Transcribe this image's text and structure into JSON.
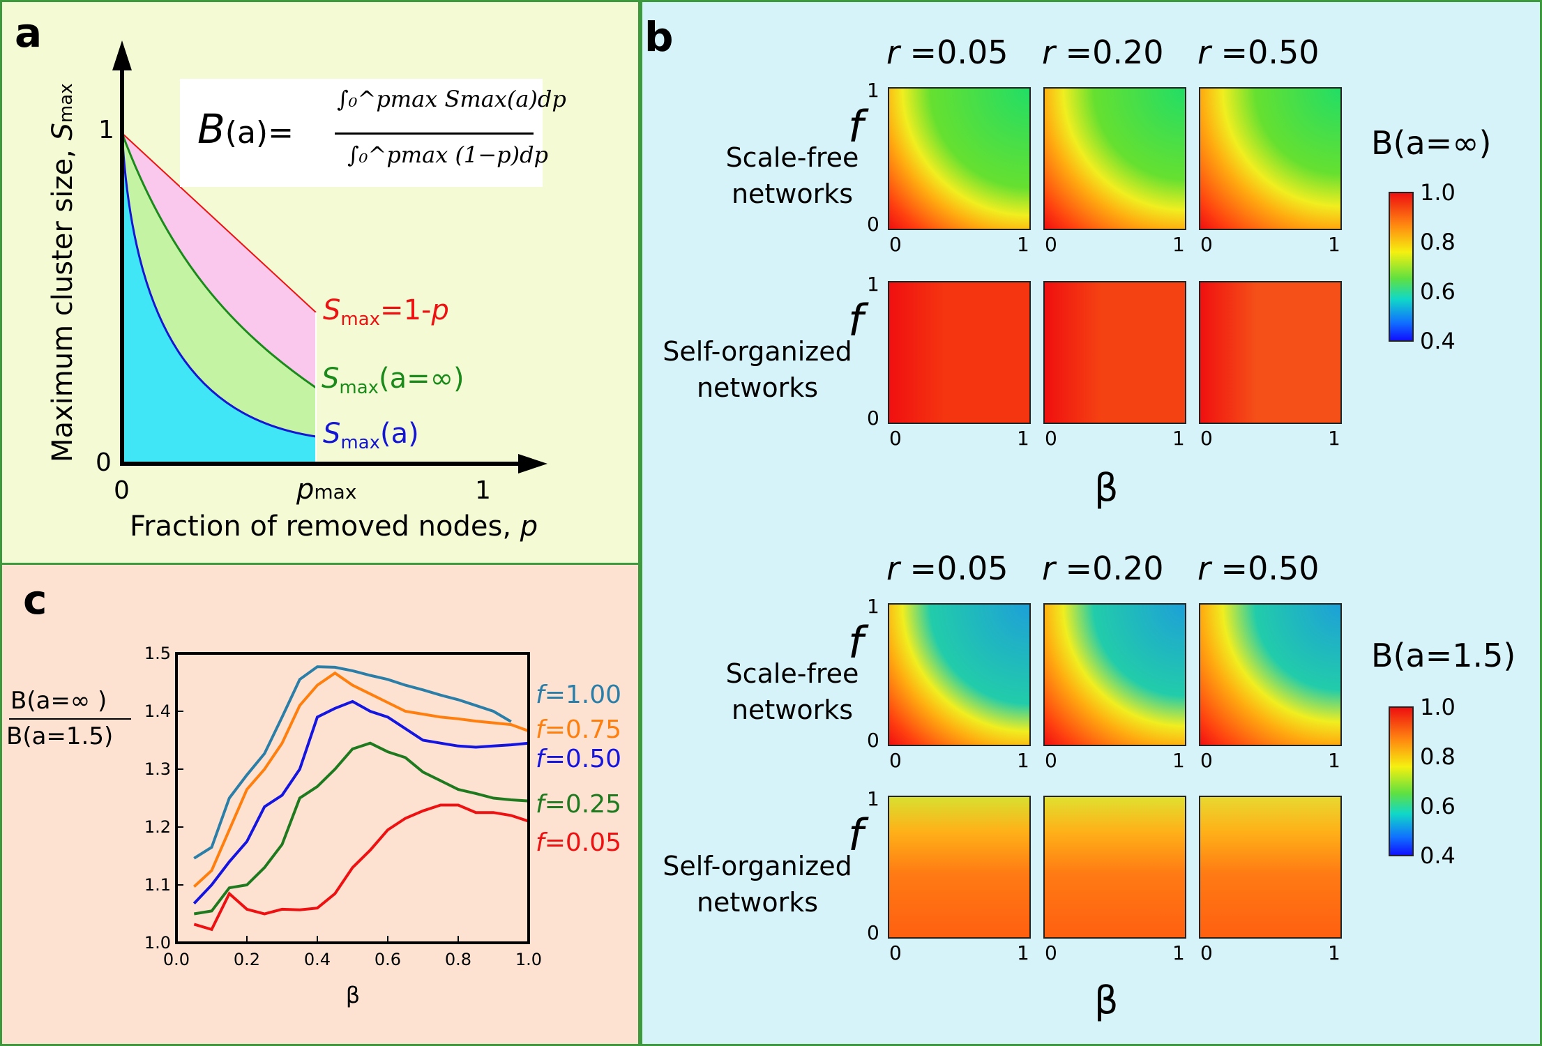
{
  "panel_a": {
    "label": "a",
    "ylabel_main": "Maximum cluster size, ",
    "ylabel_sym": "S",
    "ylabel_sub": "max",
    "xlabel_main": "Fraction of removed nodes, ",
    "xlabel_sym": "p",
    "y_tick_1": "1",
    "y_tick_0": "0",
    "x_tick_0": "0",
    "x_tick_1": "1",
    "pmax_sym": "p",
    "pmax_sub": "max",
    "formula_lhs_sym": "B",
    "formula_lhs_arg": "(a)=",
    "formula_num": "∫₀^pmax Smax(a)dp",
    "formula_den": "∫₀^pmax (1−p)dp",
    "curve_labels": [
      {
        "sym": "S",
        "sub": "max",
        "text": "=1-",
        "tail": "p",
        "color": "#ee1111"
      },
      {
        "sym": "S",
        "sub": "max",
        "text": "(a=∞)",
        "tail": "",
        "color": "#1a8a1a"
      },
      {
        "sym": "S",
        "sub": "max",
        "text": "(a)",
        "tail": "",
        "color": "#1515d4"
      }
    ]
  },
  "panel_b": {
    "label": "b",
    "r_titles": [
      "r =0.05",
      "r =0.20",
      "r =0.50"
    ],
    "row_labels": {
      "scale_free": [
        "Scale-free",
        "networks"
      ],
      "self_org": [
        "Self-organized",
        "networks"
      ]
    },
    "f_axis": "f",
    "beta_axis": "β",
    "tick_0": "0",
    "tick_1": "1",
    "colorbar_top_title": "B(a=∞)",
    "colorbar_bottom_title": "B(a=1.5)",
    "colorbar_ticks": [
      "1.0",
      "0.8",
      "0.6",
      "0.4"
    ]
  },
  "panel_c": {
    "label": "c",
    "ylabel_num": "B(a=∞ )",
    "ylabel_den": "B(a=1.5)"
  },
  "chart_data": {
    "type": "line",
    "title": "",
    "xlabel": "β",
    "ylabel": "B(a=∞)/B(a=1.5)",
    "xlim": [
      0.0,
      1.0
    ],
    "ylim": [
      1.0,
      1.5
    ],
    "x_ticks": [
      "0.0",
      "0.2",
      "0.4",
      "0.6",
      "0.8",
      "1.0"
    ],
    "y_ticks": [
      "1.0",
      "1.1",
      "1.2",
      "1.3",
      "1.4",
      "1.5"
    ],
    "x": [
      0.05,
      0.1,
      0.15,
      0.2,
      0.25,
      0.3,
      0.35,
      0.4,
      0.45,
      0.5,
      0.55,
      0.6,
      0.65,
      0.7,
      0.75,
      0.8,
      0.85,
      0.9,
      0.95,
      1.0
    ],
    "series": [
      {
        "name": "f=1.00",
        "label_sym": "f",
        "label_val": "=1.00",
        "color": "#2a7ea8",
        "values": [
          1.146,
          1.165,
          1.25,
          1.29,
          1.327,
          1.39,
          1.455,
          1.477,
          1.476,
          1.47,
          1.462,
          1.455,
          1.445,
          1.437,
          1.428,
          1.42,
          1.41,
          1.4,
          1.382,
          null
        ]
      },
      {
        "name": "f=0.75",
        "label_sym": "f",
        "label_val": "=0.75",
        "color": "#ff7f0e",
        "values": [
          1.097,
          1.125,
          1.195,
          1.265,
          1.3,
          1.345,
          1.41,
          1.445,
          1.466,
          1.445,
          1.43,
          1.415,
          1.4,
          1.395,
          1.39,
          1.387,
          1.383,
          1.38,
          1.377,
          1.366
        ]
      },
      {
        "name": "f=0.50",
        "label_sym": "f",
        "label_val": "=0.50",
        "color": "#1515e0",
        "values": [
          1.068,
          1.1,
          1.14,
          1.175,
          1.235,
          1.255,
          1.3,
          1.39,
          1.405,
          1.417,
          1.4,
          1.39,
          1.37,
          1.35,
          1.345,
          1.34,
          1.338,
          1.34,
          1.342,
          1.345
        ]
      },
      {
        "name": "f=0.25",
        "label_sym": "f",
        "label_val": "=0.25",
        "color": "#1f7a1f",
        "values": [
          1.05,
          1.055,
          1.095,
          1.1,
          1.13,
          1.17,
          1.25,
          1.27,
          1.3,
          1.335,
          1.345,
          1.33,
          1.32,
          1.295,
          1.28,
          1.265,
          1.258,
          1.25,
          1.247,
          1.245
        ]
      },
      {
        "name": "f=0.05",
        "label_sym": "f",
        "label_val": "=0.05",
        "color": "#ee1111",
        "values": [
          1.032,
          1.023,
          1.085,
          1.058,
          1.05,
          1.058,
          1.057,
          1.06,
          1.085,
          1.13,
          1.16,
          1.195,
          1.215,
          1.228,
          1.238,
          1.238,
          1.225,
          1.225,
          1.22,
          1.21
        ]
      }
    ]
  }
}
